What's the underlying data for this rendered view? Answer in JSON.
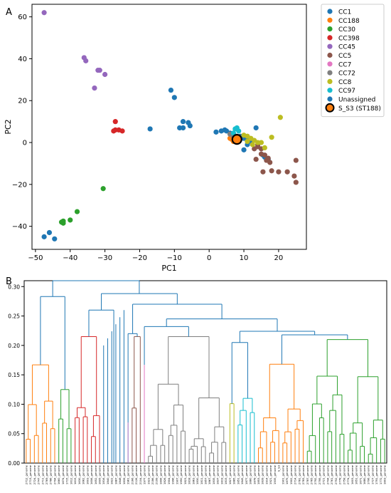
{
  "chart_data": [
    {
      "type": "scatter",
      "panel_label": "A",
      "xlabel": "PC1",
      "ylabel": "PC2",
      "xlim": [
        -51,
        28
      ],
      "ylim": [
        -51,
        66
      ],
      "xticks": [
        -50,
        -40,
        -30,
        -20,
        -10,
        0,
        10,
        20
      ],
      "yticks": [
        -40,
        -20,
        0,
        20,
        40,
        60
      ],
      "grid": false,
      "legend_position": "outside-right",
      "series": [
        {
          "name": "CC1",
          "color": "#1f77b4",
          "points": [
            [
              -11,
              25
            ],
            [
              -10,
              21.5
            ],
            [
              -8.5,
              7
            ],
            [
              -7.5,
              7
            ],
            [
              -7.5,
              10
            ],
            [
              -6,
              9.5
            ],
            [
              -5.5,
              8
            ],
            [
              -17,
              6.5
            ],
            [
              2,
              5
            ],
            [
              3.5,
              5.5
            ],
            [
              4.5,
              6
            ],
            [
              5,
              5.5
            ],
            [
              6,
              4.5
            ],
            [
              7,
              4
            ],
            [
              8,
              3
            ],
            [
              9,
              3
            ],
            [
              10,
              2
            ],
            [
              11,
              1.5
            ],
            [
              12,
              0.5
            ],
            [
              13.5,
              7
            ],
            [
              10,
              -3.5
            ],
            [
              15.5,
              -6
            ],
            [
              16,
              -7
            ],
            [
              17,
              -8
            ],
            [
              11,
              -1
            ]
          ]
        },
        {
          "name": "CC188",
          "color": "#ff7f0e",
          "points": [
            [
              6,
              2
            ],
            [
              6.5,
              1.5
            ],
            [
              7,
              0.5
            ]
          ]
        },
        {
          "name": "CC30",
          "color": "#2ca02c",
          "points": [
            [
              -30.5,
              -22
            ],
            [
              -38,
              -33
            ],
            [
              -40,
              -37
            ],
            [
              -42,
              -37.5
            ],
            [
              -42,
              -38.5
            ],
            [
              -42.5,
              -38
            ]
          ]
        },
        {
          "name": "CC398",
          "color": "#d62728",
          "points": [
            [
              -27,
              10
            ],
            [
              -27.5,
              5.5
            ],
            [
              -27,
              6
            ],
            [
              -26,
              6
            ],
            [
              -25,
              5.5
            ]
          ]
        },
        {
          "name": "CC45",
          "color": "#9467bd",
          "points": [
            [
              -47.5,
              62
            ],
            [
              -36,
              40.5
            ],
            [
              -35.5,
              39
            ],
            [
              -32,
              34.5
            ],
            [
              -31.5,
              34.5
            ],
            [
              -30,
              32.5
            ],
            [
              -33,
              26
            ]
          ]
        },
        {
          "name": "CC5",
          "color": "#8c564b",
          "points": [
            [
              13,
              -3
            ],
            [
              14,
              -2
            ],
            [
              15,
              -5.5
            ],
            [
              16,
              -6
            ],
            [
              17,
              -7.5
            ],
            [
              16.5,
              -8.5
            ],
            [
              17.5,
              -9.5
            ],
            [
              13.5,
              -8
            ],
            [
              15.5,
              -14
            ],
            [
              18,
              -13.5
            ],
            [
              20,
              -14
            ],
            [
              22.5,
              -14
            ],
            [
              24.5,
              -16
            ],
            [
              25,
              -19
            ],
            [
              25,
              -8.5
            ],
            [
              14,
              -1
            ],
            [
              15,
              -3
            ]
          ]
        },
        {
          "name": "CC7",
          "color": "#e377c2",
          "points": []
        },
        {
          "name": "CC72",
          "color": "#7f7f7f",
          "points": [
            [
              6,
              4
            ],
            [
              7,
              3
            ]
          ]
        },
        {
          "name": "CC8",
          "color": "#bcbd22",
          "points": [
            [
              20.5,
              12
            ],
            [
              18,
              2.5
            ],
            [
              10,
              3.5
            ],
            [
              11,
              3
            ],
            [
              12,
              2
            ],
            [
              13,
              1
            ],
            [
              14,
              0
            ],
            [
              15,
              0
            ],
            [
              16,
              -2.5
            ],
            [
              12.5,
              -1
            ],
            [
              11,
              0.5
            ]
          ]
        },
        {
          "name": "CC97",
          "color": "#17becf",
          "points": [
            [
              7.5,
              6.5
            ],
            [
              8,
              7
            ],
            [
              8.5,
              5.5
            ],
            [
              7,
              4.5
            ]
          ]
        },
        {
          "name": "Unassigned",
          "color": "#1f77b4",
          "points": [
            [
              -46,
              -43
            ],
            [
              -47.5,
              -45
            ],
            [
              -44.5,
              -46
            ]
          ]
        },
        {
          "name": "S_S3 (ST188)",
          "color": "#ff7f0e",
          "edge": "#000000",
          "marker": "large",
          "points": [
            [
              8,
              1.5
            ]
          ]
        }
      ]
    },
    {
      "type": "dendrogram",
      "panel_label": "B",
      "ylim": [
        0,
        0.31
      ],
      "yticks": [
        "0.00",
        "0.05",
        "0.10",
        "0.15",
        "0.20",
        "0.25",
        "0.30"
      ],
      "leaf_count": 89,
      "leaf_labels": [
        "2712_genome",
        "2713_genome",
        "2724_genome",
        "2747_genome",
        "2711_genome",
        "2769_genome",
        "2786_genome",
        "2794_genome",
        "1660_genome",
        "1674_genome",
        "1715_genome",
        "1612_genome",
        "1615_genome",
        "1630_genome",
        "1662_genome",
        "1603_genome",
        "1606_genome",
        "1652_genome",
        "1605_genome",
        "1816_genome",
        "1840_genome",
        "1822_genome",
        "1887_genome",
        "1848_genome",
        "1839_genome",
        "1961_genome",
        "2166_genome",
        "2126_genome",
        "2104_genome",
        "1977_genome",
        "1923_genome",
        "2186_genome",
        "2199_genome",
        "1806_genome",
        "1826_genome",
        "1904_genome",
        "1996_genome",
        "1907_genome",
        "1950_genome",
        "1823_genome",
        "1818_genome",
        "1863_genome",
        "1830_genome",
        "1811_genome",
        "1857_genome",
        "1867_genome",
        "1835_genome",
        "1837_genome",
        "1819_genome",
        "1815_genome",
        "1827_genome",
        "1885_genome",
        "1851_genome",
        "1845_genome",
        "1877_genome",
        "1880_genome",
        "1878_genome",
        "1853_genome",
        "1839_genome",
        "1914_genome",
        "1921_genome",
        "1935_genome",
        "S_S3",
        "1901_genome",
        "1875_genome",
        "1902_genome",
        "2714_genome",
        "2781_genome",
        "2783_genome",
        "2787_genome",
        "2765_genome",
        "2792_genome",
        "2795_genome",
        "2721_genome",
        "2744_genome",
        "2761_genome",
        "2752_genome",
        "2778_genome",
        "2758_genome",
        "2774_genome",
        "1603_genome",
        "1651_genome",
        "1671_genome",
        "1680_genome",
        "1706_genome",
        "1727_genome",
        "1791_genome",
        "1772_genome",
        "1803_genome"
      ],
      "clusters": [
        {
          "color": "#ff7f0e",
          "leaf_start": 0,
          "leaf_end": 7,
          "height": 0.167
        },
        {
          "color": "#2ca02c",
          "leaf_start": 8,
          "leaf_end": 11,
          "height": 0.125
        },
        {
          "color": "#d62728",
          "leaf_start": 12,
          "leaf_end": 18,
          "height": 0.215
        },
        {
          "color": "#1f77b4",
          "leaf_start": 19,
          "leaf_end": 24,
          "height": 0.0
        },
        {
          "color": "#9467bd",
          "leaf_start": 25,
          "leaf_end": 25,
          "height": 0.069
        },
        {
          "color": "#8c564b",
          "leaf_start": 26,
          "leaf_end": 28,
          "height": 0.215
        },
        {
          "color": "#e377c2",
          "leaf_start": 29,
          "leaf_end": 29,
          "height": 0.167
        },
        {
          "color": "#7f7f7f",
          "leaf_start": 30,
          "leaf_end": 49,
          "height": 0.215
        },
        {
          "color": "#bcbd22",
          "leaf_start": 50,
          "leaf_end": 51,
          "height": 0.101
        },
        {
          "color": "#17becf",
          "leaf_start": 52,
          "leaf_end": 56,
          "height": 0.11
        },
        {
          "color": "#ff7f0e",
          "leaf_start": 57,
          "leaf_end": 68,
          "height": 0.168
        },
        {
          "color": "#2ca02c",
          "leaf_start": 69,
          "leaf_end": 88,
          "height": 0.21
        }
      ],
      "link_color": "#1f77b4"
    }
  ]
}
